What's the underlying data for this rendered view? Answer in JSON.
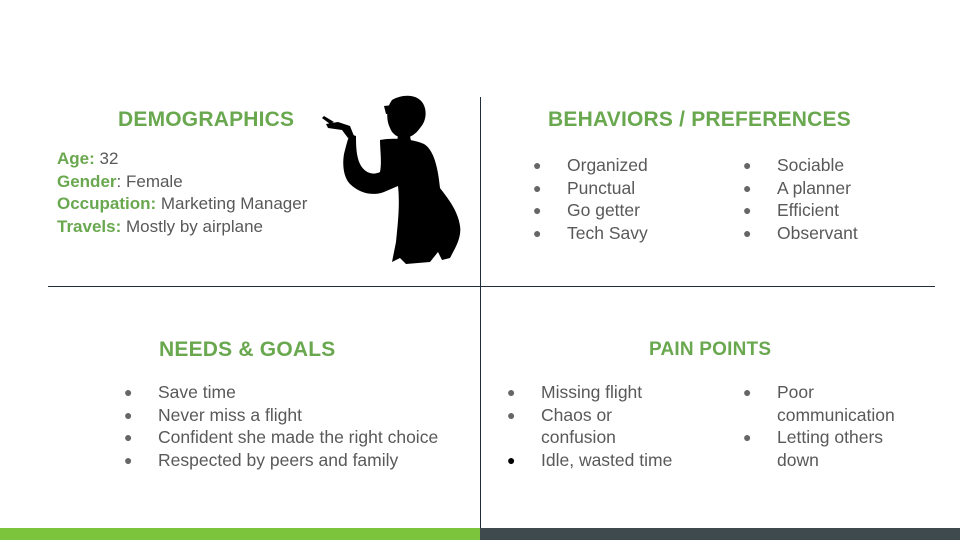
{
  "demographics": {
    "heading": "DEMOGRAPHICS",
    "age_key": "Age:",
    "age_value": " 32",
    "gender_key": "Gender",
    "gender_value": ": Female",
    "occupation_key": "Occupation:",
    "occupation_value": " Marketing Manager",
    "travels_key": "Travels:",
    "travels_value": " Mostly by airplane"
  },
  "behaviors": {
    "heading": "BEHAVIORS / PREFERENCES",
    "left": [
      "Organized",
      "Punctual",
      "Go getter",
      "Tech Savy"
    ],
    "right": [
      "Sociable",
      "A planner",
      "Efficient",
      "Observant"
    ]
  },
  "needs": {
    "heading": "NEEDS & GOALS",
    "items": [
      "Save time",
      "Never miss a flight",
      "Confident she made the right choice",
      "Respected by peers and family"
    ]
  },
  "pain_points": {
    "heading": "PAIN POINTS",
    "left": [
      "Missing flight",
      "Chaos or confusion",
      "Idle, wasted time"
    ],
    "right": [
      "Poor communication",
      "Letting others down"
    ]
  },
  "bullet_glyph": "●",
  "colors": {
    "accent_green": "#6aa84f",
    "bar_green": "#7cc43b",
    "bar_dark": "#3f4a4e",
    "divider": "#1f2d3a",
    "text": "#595959"
  },
  "illustration": "woman-silhouette-pointing"
}
